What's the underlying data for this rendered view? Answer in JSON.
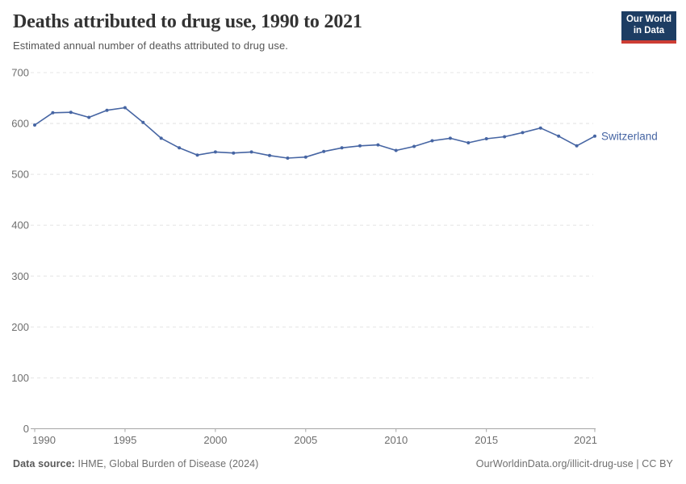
{
  "chart_data": {
    "type": "line",
    "title": "Deaths attributed to drug use, 1990 to 2021",
    "subtitle": "Estimated annual number of deaths attributed to drug use.",
    "x": [
      1990,
      1991,
      1992,
      1993,
      1994,
      1995,
      1996,
      1997,
      1998,
      1999,
      2000,
      2001,
      2002,
      2003,
      2004,
      2005,
      2006,
      2007,
      2008,
      2009,
      2010,
      2011,
      2012,
      2013,
      2014,
      2015,
      2016,
      2017,
      2018,
      2019,
      2020,
      2021
    ],
    "series": [
      {
        "name": "Switzerland",
        "color": "#4665a3",
        "values": [
          597,
          621,
          622,
          612,
          626,
          631,
          602,
          571,
          552,
          538,
          544,
          542,
          544,
          537,
          532,
          534,
          545,
          552,
          556,
          558,
          547,
          555,
          566,
          571,
          562,
          570,
          574,
          582,
          591,
          575,
          556,
          575
        ]
      }
    ],
    "ylim": [
      0,
      700
    ],
    "yticks": [
      0,
      100,
      200,
      300,
      400,
      500,
      600,
      700
    ],
    "xticks": [
      1990,
      1995,
      2000,
      2005,
      2010,
      2015,
      2021
    ],
    "grid": "horizontal dashed gridlines",
    "legend_position": "label at end of line"
  },
  "colors": {
    "line": "#4665a3",
    "grid": "#e9e9e9",
    "axis": "#a6a6a6",
    "tick_text": "#6e6e6e"
  },
  "logo": {
    "line1": "Our World",
    "line2": "in Data",
    "bg": "#1d3d63",
    "bar": "#cd3d34"
  },
  "footer": {
    "source_label": "Data source:",
    "source_text": "IHME, Global Burden of Disease (2024)",
    "credit": "OurWorldinData.org/illicit-drug-use | CC BY"
  }
}
